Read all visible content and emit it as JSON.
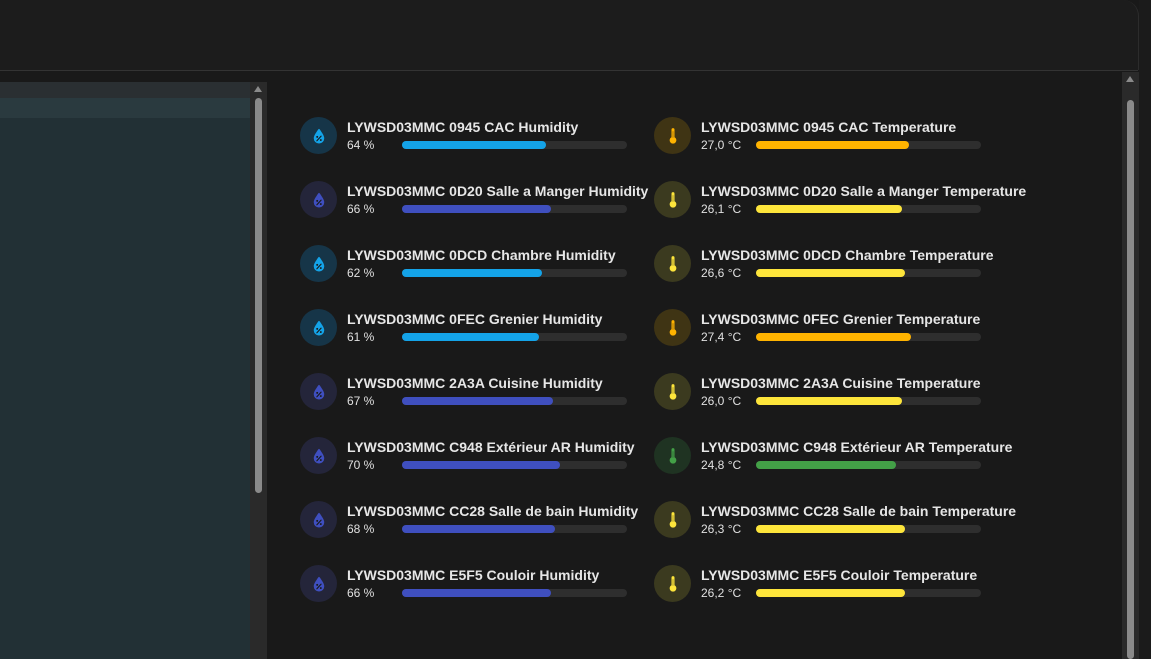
{
  "colors": {
    "humidity_light": "#14a3e8",
    "humidity_dark": "#3f4fbf",
    "temp_orange": "#ffb300",
    "temp_yellow": "#fde53b",
    "temp_green": "#43a047"
  },
  "entities": [
    {
      "name": "LYWSD03MMC 0945 CAC Humidity",
      "value": "64 %",
      "level": 0.64,
      "icon": "water-percent-icon",
      "color": "#14a3e8",
      "icon_bg": "#163548"
    },
    {
      "name": "LYWSD03MMC 0945 CAC Temperature",
      "value": "27,0 °C",
      "level": 0.68,
      "icon": "thermometer-icon",
      "color": "#ffb300",
      "icon_bg": "#3f3414"
    },
    {
      "name": "LYWSD03MMC 0D20 Salle a Manger Humidity",
      "value": "66 %",
      "level": 0.66,
      "icon": "water-percent-icon",
      "color": "#3f4fbf",
      "icon_bg": "#24253a"
    },
    {
      "name": "LYWSD03MMC 0D20 Salle a Manger Temperature",
      "value": "26,1 °C",
      "level": 0.65,
      "icon": "thermometer-icon",
      "color": "#fde53b",
      "icon_bg": "#3b3a1f"
    },
    {
      "name": "LYWSD03MMC 0DCD Chambre Humidity",
      "value": "62 %",
      "level": 0.62,
      "icon": "water-percent-icon",
      "color": "#14a3e8",
      "icon_bg": "#163548"
    },
    {
      "name": "LYWSD03MMC 0DCD Chambre Temperature",
      "value": "26,6 °C",
      "level": 0.66,
      "icon": "thermometer-icon",
      "color": "#fde53b",
      "icon_bg": "#3b3a1f"
    },
    {
      "name": "LYWSD03MMC 0FEC Grenier Humidity",
      "value": "61 %",
      "level": 0.61,
      "icon": "water-percent-icon",
      "color": "#14a3e8",
      "icon_bg": "#163548"
    },
    {
      "name": "LYWSD03MMC 0FEC Grenier Temperature",
      "value": "27,4 °C",
      "level": 0.69,
      "icon": "thermometer-icon",
      "color": "#ffb300",
      "icon_bg": "#3f3414"
    },
    {
      "name": "LYWSD03MMC 2A3A Cuisine Humidity",
      "value": "67 %",
      "level": 0.67,
      "icon": "water-percent-icon",
      "color": "#3f4fbf",
      "icon_bg": "#24253a"
    },
    {
      "name": "LYWSD03MMC 2A3A Cuisine Temperature",
      "value": "26,0 °C",
      "level": 0.65,
      "icon": "thermometer-icon",
      "color": "#fde53b",
      "icon_bg": "#3b3a1f"
    },
    {
      "name": "LYWSD03MMC C948 Extérieur AR Humidity",
      "value": "70 %",
      "level": 0.7,
      "icon": "water-percent-icon",
      "color": "#3f4fbf",
      "icon_bg": "#24253a"
    },
    {
      "name": "LYWSD03MMC C948 Extérieur AR Temperature",
      "value": "24,8 °C",
      "level": 0.62,
      "icon": "thermometer-icon",
      "color": "#43a047",
      "icon_bg": "#1f3322"
    },
    {
      "name": "LYWSD03MMC CC28 Salle de bain Humidity",
      "value": "68 %",
      "level": 0.68,
      "icon": "water-percent-icon",
      "color": "#3f4fbf",
      "icon_bg": "#24253a"
    },
    {
      "name": "LYWSD03MMC CC28 Salle de bain Temperature",
      "value": "26,3 °C",
      "level": 0.66,
      "icon": "thermometer-icon",
      "color": "#fde53b",
      "icon_bg": "#3b3a1f"
    },
    {
      "name": "LYWSD03MMC E5F5 Couloir Humidity",
      "value": "66 %",
      "level": 0.66,
      "icon": "water-percent-icon",
      "color": "#3f4fbf",
      "icon_bg": "#24253a"
    },
    {
      "name": "LYWSD03MMC E5F5 Couloir Temperature",
      "value": "26,2 °C",
      "level": 0.66,
      "icon": "thermometer-icon",
      "color": "#fde53b",
      "icon_bg": "#3b3a1f"
    }
  ]
}
